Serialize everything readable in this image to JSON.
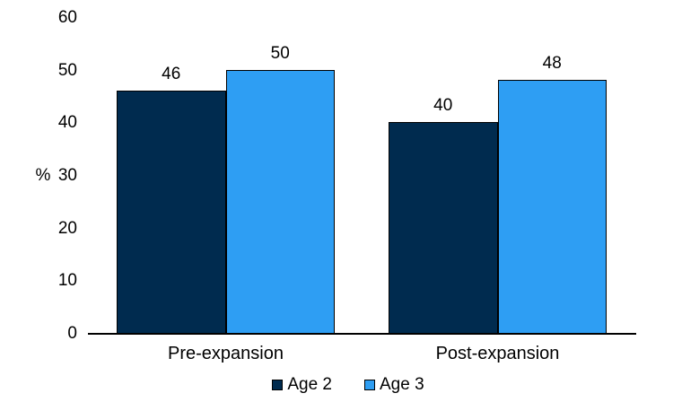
{
  "chart_data": {
    "type": "bar",
    "categories": [
      "Pre-expansion",
      "Post-expansion"
    ],
    "series": [
      {
        "name": "Age 2",
        "color": "#002B4F",
        "values": [
          46,
          40
        ]
      },
      {
        "name": "Age 3",
        "color": "#2E9EF3",
        "values": [
          50,
          48
        ]
      }
    ],
    "title": "",
    "xlabel": "",
    "ylabel": "%",
    "yticks": [
      0,
      10,
      20,
      30,
      40,
      50,
      60
    ],
    "ylim": [
      0,
      60
    ],
    "grid": false,
    "value_labels_shown": true,
    "legend_position": "bottom",
    "bar_border_color": "#000000",
    "axis_color": "#000000",
    "text_color": "#000000",
    "background_color": "#FFFFFF"
  }
}
